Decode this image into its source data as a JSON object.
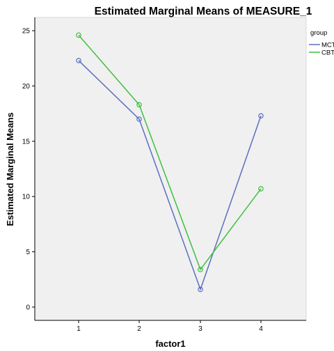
{
  "chart_data": {
    "type": "line",
    "title": "Estimated Marginal Means of MEASURE_1",
    "xlabel": "factor1",
    "ylabel": "Estimated Marginal Means",
    "categories": [
      "1",
      "2",
      "3",
      "4"
    ],
    "ylim": [
      -1.2,
      26.2
    ],
    "yticks": [
      "0",
      "5",
      "10",
      "15",
      "20",
      "25"
    ],
    "grid": false,
    "legend": {
      "title": "group",
      "position": "top-right"
    },
    "series": [
      {
        "name": "MCT",
        "color": "#5b6fc0",
        "values": [
          22.3,
          17.0,
          1.6,
          17.3
        ]
      },
      {
        "name": "CBT",
        "color": "#3fbf3f",
        "values": [
          24.6,
          18.3,
          3.4,
          10.7
        ]
      }
    ],
    "colors": {
      "plot_background": "#f0f0f0",
      "axis": "#000000"
    }
  }
}
